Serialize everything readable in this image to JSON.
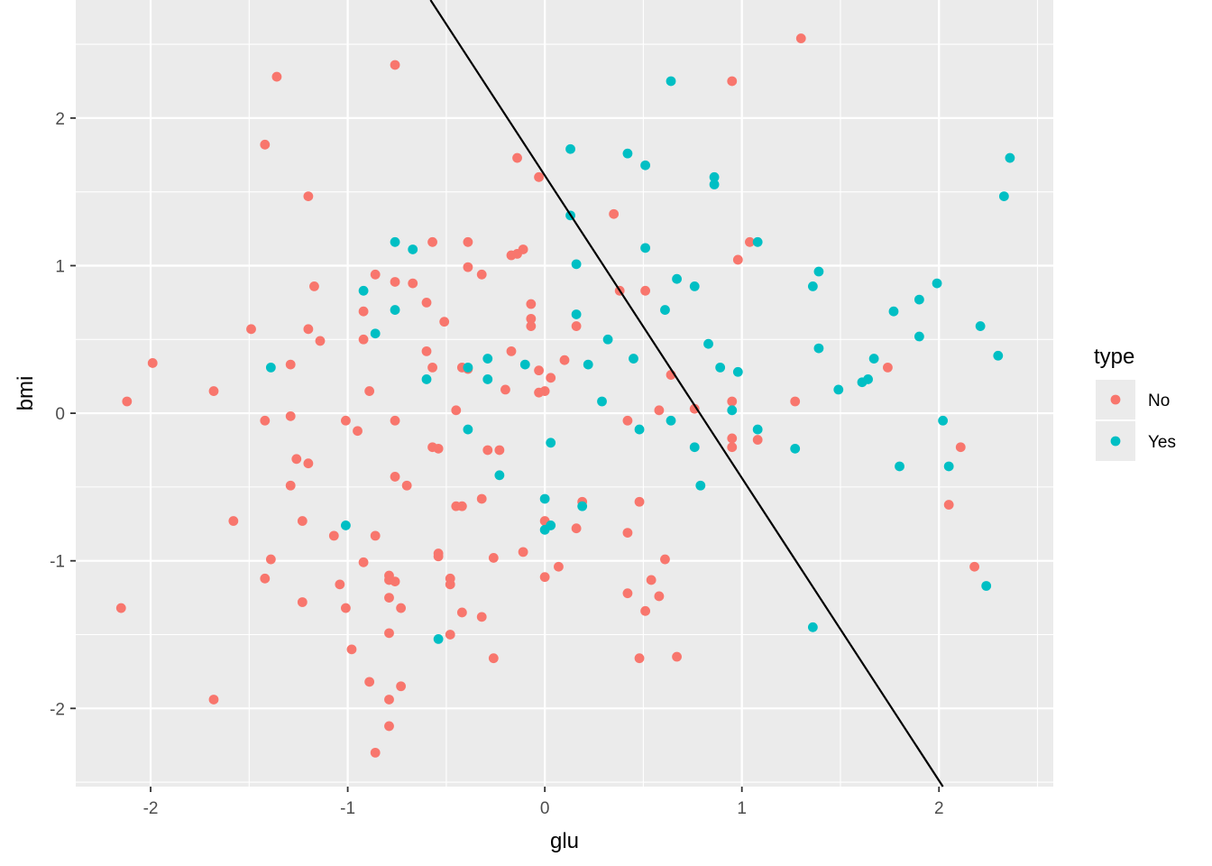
{
  "chart_data": {
    "type": "scatter",
    "title": "",
    "xlabel": "glu",
    "ylabel": "bmi",
    "xlim": [
      -2.38,
      2.58
    ],
    "ylim": [
      -2.53,
      2.8
    ],
    "x_ticks": [
      -2,
      -1,
      0,
      1,
      2
    ],
    "y_ticks": [
      -2,
      -1,
      0,
      1,
      2
    ],
    "x_tick_labels": [
      "-2",
      "-1",
      "0",
      "1",
      "2"
    ],
    "y_tick_labels": [
      "-2",
      "-1",
      "0",
      "1",
      "2"
    ],
    "grid": true,
    "legend": {
      "title": "type",
      "position": "right",
      "entries": [
        {
          "label": "No",
          "color": "#F8766D"
        },
        {
          "label": "Yes",
          "color": "#00BFC4"
        }
      ]
    },
    "decision_line": {
      "points": [
        [
          -0.58,
          2.8
        ],
        [
          2.02,
          -2.53
        ]
      ],
      "color": "#000000"
    },
    "series": [
      {
        "name": "No",
        "color": "#F8766D",
        "points": [
          [
            -2.12,
            0.08
          ],
          [
            -2.15,
            -1.32
          ],
          [
            -1.99,
            0.34
          ],
          [
            -1.68,
            0.15
          ],
          [
            -1.68,
            -1.94
          ],
          [
            -1.58,
            -0.73
          ],
          [
            -1.49,
            0.57
          ],
          [
            -1.42,
            1.82
          ],
          [
            -1.42,
            -0.05
          ],
          [
            -1.42,
            -1.12
          ],
          [
            -1.39,
            -0.99
          ],
          [
            -1.36,
            2.28
          ],
          [
            -1.29,
            0.33
          ],
          [
            -1.29,
            -0.02
          ],
          [
            -1.29,
            -0.49
          ],
          [
            -1.26,
            -0.31
          ],
          [
            -1.23,
            -0.73
          ],
          [
            -1.23,
            -1.28
          ],
          [
            -1.2,
            1.47
          ],
          [
            -1.2,
            0.57
          ],
          [
            -1.2,
            -0.34
          ],
          [
            -1.17,
            0.86
          ],
          [
            -1.14,
            0.49
          ],
          [
            -1.07,
            -0.83
          ],
          [
            -1.04,
            -1.16
          ],
          [
            -1.01,
            -0.05
          ],
          [
            -1.01,
            -1.32
          ],
          [
            -0.98,
            -1.6
          ],
          [
            -0.95,
            -0.12
          ],
          [
            -0.92,
            0.69
          ],
          [
            -0.92,
            0.5
          ],
          [
            -0.92,
            -1.01
          ],
          [
            -0.89,
            0.15
          ],
          [
            -0.89,
            -1.82
          ],
          [
            -0.86,
            0.94
          ],
          [
            -0.86,
            -0.83
          ],
          [
            -0.86,
            -2.3
          ],
          [
            -0.79,
            -1.1
          ],
          [
            -0.79,
            -1.13
          ],
          [
            -0.79,
            -1.25
          ],
          [
            -0.79,
            -1.49
          ],
          [
            -0.79,
            -1.94
          ],
          [
            -0.79,
            -2.12
          ],
          [
            -0.76,
            2.36
          ],
          [
            -0.76,
            0.89
          ],
          [
            -0.76,
            -0.05
          ],
          [
            -0.76,
            -0.43
          ],
          [
            -0.76,
            -1.14
          ],
          [
            -0.73,
            -1.32
          ],
          [
            -0.73,
            -1.85
          ],
          [
            -0.7,
            -0.49
          ],
          [
            -0.67,
            0.88
          ],
          [
            -0.6,
            0.75
          ],
          [
            -0.6,
            0.42
          ],
          [
            -0.57,
            1.16
          ],
          [
            -0.57,
            0.31
          ],
          [
            -0.57,
            -0.23
          ],
          [
            -0.54,
            -0.24
          ],
          [
            -0.54,
            -0.95
          ],
          [
            -0.54,
            -0.97
          ],
          [
            -0.51,
            0.62
          ],
          [
            -0.48,
            -1.12
          ],
          [
            -0.48,
            -1.16
          ],
          [
            -0.48,
            -1.5
          ],
          [
            -0.45,
            0.02
          ],
          [
            -0.45,
            -0.63
          ],
          [
            -0.42,
            0.31
          ],
          [
            -0.42,
            -0.63
          ],
          [
            -0.42,
            -1.35
          ],
          [
            -0.39,
            1.16
          ],
          [
            -0.39,
            0.99
          ],
          [
            -0.39,
            0.3
          ],
          [
            -0.32,
            0.94
          ],
          [
            -0.32,
            -0.58
          ],
          [
            -0.32,
            -1.38
          ],
          [
            -0.29,
            -0.25
          ],
          [
            -0.26,
            -0.98
          ],
          [
            -0.26,
            -1.66
          ],
          [
            -0.23,
            -0.25
          ],
          [
            -0.2,
            0.16
          ],
          [
            -0.17,
            1.07
          ],
          [
            -0.17,
            0.42
          ],
          [
            -0.14,
            1.08
          ],
          [
            -0.14,
            1.73
          ],
          [
            -0.11,
            1.11
          ],
          [
            -0.11,
            -0.94
          ],
          [
            -0.07,
            0.74
          ],
          [
            -0.07,
            0.64
          ],
          [
            -0.07,
            0.59
          ],
          [
            -0.03,
            1.6
          ],
          [
            -0.03,
            0.29
          ],
          [
            -0.03,
            0.14
          ],
          [
            0,
            0.15
          ],
          [
            0,
            -0.73
          ],
          [
            0,
            -1.11
          ],
          [
            0.03,
            0.24
          ],
          [
            0.07,
            -1.04
          ],
          [
            0.1,
            0.36
          ],
          [
            0.16,
            0.59
          ],
          [
            0.16,
            -0.78
          ],
          [
            0.19,
            -0.6
          ],
          [
            0.35,
            1.35
          ],
          [
            0.38,
            0.83
          ],
          [
            0.42,
            -0.05
          ],
          [
            0.42,
            -0.81
          ],
          [
            0.42,
            -1.22
          ],
          [
            0.48,
            -0.6
          ],
          [
            0.48,
            -1.66
          ],
          [
            0.51,
            0.83
          ],
          [
            0.51,
            -1.34
          ],
          [
            0.54,
            -1.13
          ],
          [
            0.58,
            0.02
          ],
          [
            0.58,
            -1.24
          ],
          [
            0.61,
            -0.99
          ],
          [
            0.64,
            0.26
          ],
          [
            0.67,
            -1.65
          ],
          [
            0.76,
            0.03
          ],
          [
            0.95,
            2.25
          ],
          [
            0.95,
            0.08
          ],
          [
            0.95,
            -0.17
          ],
          [
            0.95,
            -0.23
          ],
          [
            0.98,
            1.04
          ],
          [
            1.04,
            1.16
          ],
          [
            1.08,
            -0.18
          ],
          [
            1.27,
            0.08
          ],
          [
            1.3,
            2.54
          ],
          [
            1.74,
            0.31
          ],
          [
            2.05,
            -0.62
          ],
          [
            2.11,
            -0.23
          ],
          [
            2.18,
            -1.04
          ]
        ]
      },
      {
        "name": "Yes",
        "color": "#00BFC4",
        "points": [
          [
            -1.39,
            0.31
          ],
          [
            -1.01,
            -0.76
          ],
          [
            -0.92,
            0.83
          ],
          [
            -0.86,
            0.54
          ],
          [
            -0.76,
            1.16
          ],
          [
            -0.76,
            0.7
          ],
          [
            -0.67,
            1.11
          ],
          [
            -0.6,
            0.23
          ],
          [
            -0.54,
            -1.53
          ],
          [
            -0.39,
            0.31
          ],
          [
            -0.39,
            -0.11
          ],
          [
            -0.29,
            0.37
          ],
          [
            -0.29,
            0.23
          ],
          [
            -0.23,
            -0.42
          ],
          [
            -0.1,
            0.33
          ],
          [
            0,
            -0.58
          ],
          [
            0,
            -0.79
          ],
          [
            0.03,
            -0.2
          ],
          [
            0.03,
            -0.76
          ],
          [
            0.13,
            1.79
          ],
          [
            0.13,
            1.34
          ],
          [
            0.16,
            1.01
          ],
          [
            0.16,
            0.67
          ],
          [
            0.19,
            -0.63
          ],
          [
            0.22,
            0.33
          ],
          [
            0.29,
            0.08
          ],
          [
            0.32,
            0.5
          ],
          [
            0.42,
            1.76
          ],
          [
            0.45,
            0.37
          ],
          [
            0.48,
            -0.11
          ],
          [
            0.51,
            1.68
          ],
          [
            0.51,
            1.12
          ],
          [
            0.61,
            0.7
          ],
          [
            0.64,
            2.25
          ],
          [
            0.64,
            -0.05
          ],
          [
            0.67,
            0.91
          ],
          [
            0.76,
            0.86
          ],
          [
            0.76,
            -0.23
          ],
          [
            0.79,
            -0.49
          ],
          [
            0.83,
            0.47
          ],
          [
            0.86,
            1.6
          ],
          [
            0.86,
            1.55
          ],
          [
            0.89,
            0.31
          ],
          [
            0.95,
            0.02
          ],
          [
            0.98,
            0.28
          ],
          [
            1.08,
            1.16
          ],
          [
            1.08,
            -0.11
          ],
          [
            1.27,
            -0.24
          ],
          [
            1.36,
            0.86
          ],
          [
            1.36,
            -1.45
          ],
          [
            1.39,
            0.96
          ],
          [
            1.39,
            0.44
          ],
          [
            1.49,
            0.16
          ],
          [
            1.61,
            0.21
          ],
          [
            1.64,
            0.23
          ],
          [
            1.67,
            0.37
          ],
          [
            1.77,
            0.69
          ],
          [
            1.8,
            -0.36
          ],
          [
            1.9,
            0.77
          ],
          [
            1.9,
            0.52
          ],
          [
            1.99,
            0.88
          ],
          [
            2.02,
            -0.05
          ],
          [
            2.05,
            -0.36
          ],
          [
            2.21,
            0.59
          ],
          [
            2.24,
            -1.17
          ],
          [
            2.3,
            0.39
          ],
          [
            2.33,
            1.47
          ],
          [
            2.36,
            1.73
          ]
        ]
      }
    ]
  }
}
